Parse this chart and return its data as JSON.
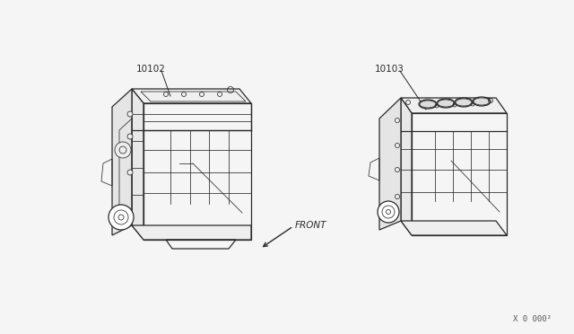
{
  "background_color": "#f5f5f5",
  "label_10102": "10102",
  "label_10103": "10103",
  "front_label": "FRONT",
  "watermark": "X 0 000²",
  "fig_width": 6.4,
  "fig_height": 3.72,
  "dpi": 100,
  "line_color": "#2a2a2a",
  "text_color": "#2a2a2a",
  "border_color": "#cccccc",
  "label_fontsize": 7.5,
  "watermark_fontsize": 6.5,
  "front_fontsize": 7.5
}
